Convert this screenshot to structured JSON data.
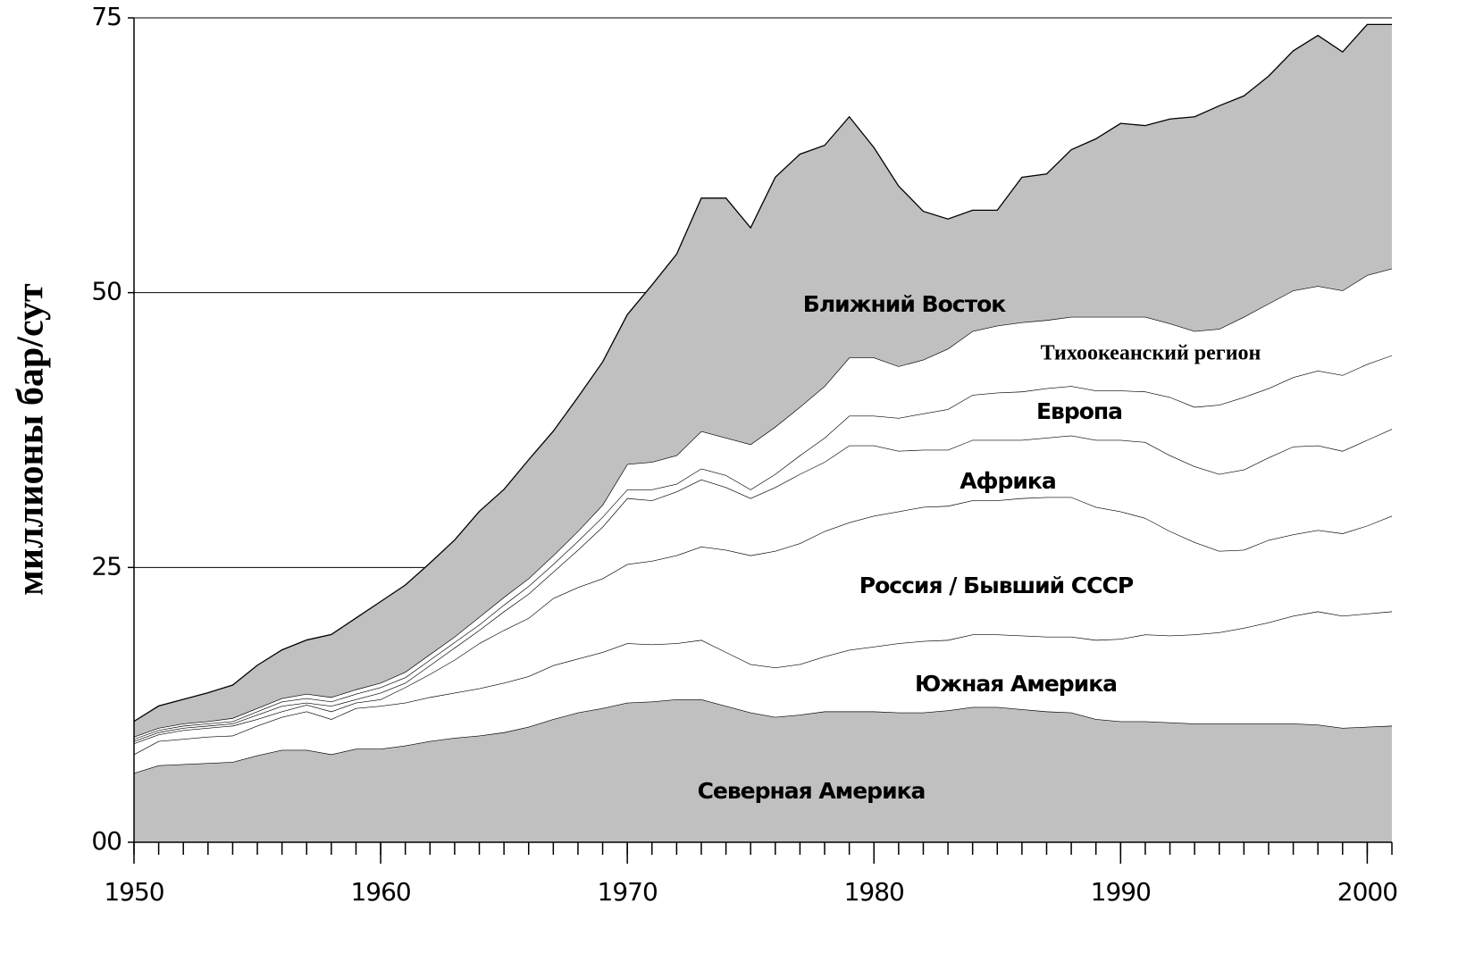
{
  "chart_data": {
    "type": "stacked_area",
    "y_label": "миллионы бар/сут",
    "x": [
      1950,
      1951,
      1952,
      1953,
      1954,
      1955,
      1956,
      1957,
      1958,
      1959,
      1960,
      1961,
      1962,
      1963,
      1964,
      1965,
      1966,
      1967,
      1968,
      1969,
      1970,
      1971,
      1972,
      1973,
      1974,
      1975,
      1976,
      1977,
      1978,
      1979,
      1980,
      1981,
      1982,
      1983,
      1984,
      1985,
      1986,
      1987,
      1988,
      1989,
      1990,
      1991,
      1992,
      1993,
      1994,
      1995,
      1996,
      1997,
      1998,
      1999,
      2000,
      2001
    ],
    "xlim": [
      1950,
      2001
    ],
    "xticks": [
      1950,
      1960,
      1970,
      1980,
      1990,
      2000
    ],
    "ylim": [
      0,
      75
    ],
    "yticks": [
      {
        "value": 0,
        "label": "00"
      },
      25,
      50,
      75
    ],
    "grid": true,
    "series": [
      {
        "name": "Северная Америка",
        "color": "#c0c0c0",
        "values": [
          6.3,
          7.0,
          7.1,
          7.2,
          7.3,
          7.9,
          8.4,
          8.4,
          8.0,
          8.5,
          8.5,
          8.8,
          9.2,
          9.5,
          9.7,
          10.0,
          10.5,
          11.2,
          11.8,
          12.2,
          12.7,
          12.8,
          13.0,
          13.0,
          12.4,
          11.8,
          11.4,
          11.6,
          11.9,
          11.9,
          11.9,
          11.8,
          11.8,
          12.0,
          12.3,
          12.3,
          12.1,
          11.9,
          11.8,
          11.2,
          11.0,
          11.0,
          10.9,
          10.8,
          10.8,
          10.8,
          10.8,
          10.8,
          10.7,
          10.4,
          10.5,
          10.6
        ]
      },
      {
        "name": "Южная Америка",
        "color": "#ffffff",
        "values": [
          1.7,
          2.2,
          2.3,
          2.4,
          2.4,
          2.7,
          3.0,
          3.5,
          3.2,
          3.7,
          3.9,
          3.9,
          4.0,
          4.1,
          4.3,
          4.5,
          4.6,
          4.9,
          4.9,
          5.1,
          5.4,
          5.2,
          5.1,
          5.4,
          4.9,
          4.4,
          4.5,
          4.6,
          5.0,
          5.6,
          5.9,
          6.3,
          6.5,
          6.4,
          6.6,
          6.6,
          6.7,
          6.8,
          6.9,
          7.2,
          7.5,
          7.9,
          7.9,
          8.1,
          8.3,
          8.7,
          9.2,
          9.8,
          10.3,
          10.2,
          10.3,
          10.4
        ]
      },
      {
        "name": "Россия / Бывший СССР",
        "color": "#ffffff",
        "values": [
          1.0,
          0.6,
          0.8,
          0.8,
          0.9,
          0.6,
          0.5,
          0.6,
          0.7,
          0.5,
          0.6,
          1.4,
          2.1,
          3.0,
          4.1,
          4.8,
          5.3,
          6.1,
          6.5,
          6.7,
          7.2,
          7.6,
          8.0,
          8.5,
          9.3,
          9.9,
          10.6,
          11.0,
          11.4,
          11.6,
          11.9,
          12.0,
          12.2,
          12.2,
          12.2,
          12.2,
          12.5,
          12.7,
          12.7,
          12.1,
          11.6,
          10.6,
          9.5,
          8.4,
          7.4,
          7.1,
          7.5,
          7.4,
          7.4,
          7.5,
          8.0,
          8.7
        ]
      },
      {
        "name": "Африка",
        "color": "#ffffff",
        "values": [
          0.2,
          0.2,
          0.2,
          0.2,
          0.2,
          0.4,
          0.5,
          0.2,
          0.5,
          0.3,
          0.6,
          0.4,
          0.8,
          1.1,
          1.2,
          1.7,
          2.2,
          2.4,
          3.4,
          4.7,
          6.0,
          5.5,
          5.8,
          6.1,
          5.7,
          5.2,
          5.8,
          6.3,
          6.3,
          7.0,
          6.4,
          5.5,
          5.2,
          5.1,
          5.5,
          5.5,
          5.3,
          5.4,
          5.6,
          6.1,
          6.5,
          6.9,
          6.9,
          6.9,
          7.0,
          7.3,
          7.5,
          8.0,
          7.7,
          7.5,
          7.8,
          7.9
        ]
      },
      {
        "name": "Европа",
        "color": "#ffffff",
        "values": [
          0.2,
          0.2,
          0.2,
          0.2,
          0.2,
          0.3,
          0.4,
          0.4,
          0.4,
          0.5,
          0.5,
          0.5,
          0.5,
          0.5,
          0.5,
          0.6,
          0.7,
          0.7,
          0.8,
          0.9,
          0.8,
          1.0,
          0.7,
          1.0,
          1.1,
          0.8,
          1.2,
          1.7,
          2.2,
          2.7,
          2.7,
          3.0,
          3.3,
          3.7,
          4.1,
          4.3,
          4.4,
          4.5,
          4.5,
          4.5,
          4.5,
          4.6,
          5.3,
          5.4,
          6.3,
          6.6,
          6.3,
          6.3,
          6.8,
          6.9,
          6.9,
          6.7
        ]
      },
      {
        "name": "Тихоокеанский регион",
        "color": "#ffffff",
        "values": [
          0.2,
          0.2,
          0.2,
          0.2,
          0.3,
          0.3,
          0.3,
          0.4,
          0.4,
          0.4,
          0.4,
          0.5,
          0.5,
          0.5,
          0.7,
          0.7,
          0.7,
          0.8,
          0.9,
          1.1,
          2.3,
          2.5,
          2.6,
          3.4,
          3.4,
          4.1,
          4.3,
          4.4,
          4.7,
          5.3,
          5.3,
          4.7,
          4.9,
          5.5,
          5.8,
          6.1,
          6.3,
          6.2,
          6.3,
          6.7,
          6.7,
          6.8,
          6.7,
          6.9,
          6.9,
          7.3,
          7.7,
          7.9,
          7.7,
          7.7,
          8.1,
          7.9
        ]
      },
      {
        "name": "Ближний Восток",
        "color": "#c0c0c0",
        "values": [
          1.4,
          2.0,
          2.2,
          2.6,
          3.0,
          3.9,
          4.4,
          4.9,
          5.7,
          6.5,
          7.4,
          7.9,
          8.3,
          8.8,
          9.6,
          9.8,
          10.8,
          11.3,
          12.2,
          13.0,
          13.6,
          16.1,
          18.3,
          21.2,
          21.8,
          19.7,
          22.7,
          23.0,
          21.9,
          21.9,
          19.1,
          16.4,
          13.5,
          11.8,
          11.0,
          10.5,
          13.2,
          13.3,
          15.2,
          16.2,
          17.6,
          17.4,
          18.6,
          19.5,
          20.3,
          20.1,
          20.7,
          21.8,
          22.8,
          21.7,
          22.8,
          22.2
        ]
      }
    ]
  }
}
